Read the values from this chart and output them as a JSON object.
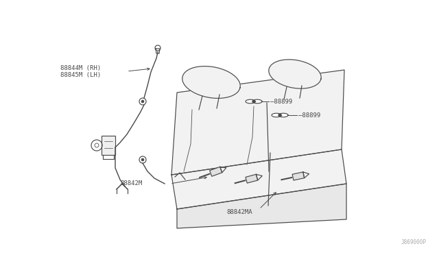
{
  "bg_color": "#ffffff",
  "line_color": "#4a4a4a",
  "text_color": "#4a4a4a",
  "seat_fill": "#f2f2f2",
  "diagram_code": "J869000P",
  "label_88844M": "88844M (RH)",
  "label_88845M": "88845M (LH)",
  "label_88899": "88899",
  "label_88842M": "88842M",
  "label_88842MA": "88842MA",
  "font_size": 6.5,
  "lw": 0.85
}
